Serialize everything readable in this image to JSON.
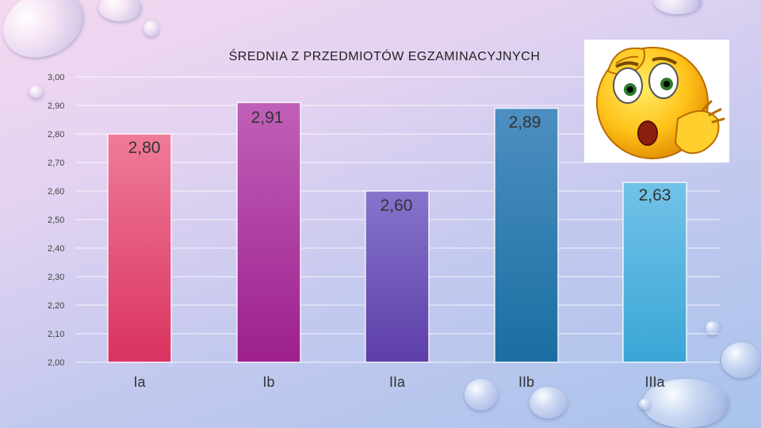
{
  "chart_data": {
    "type": "bar",
    "title": "ŚREDNIA  Z PRZEDMIOTÓW EGZAMINACYJNYCH",
    "categories": [
      "Ia",
      "Ib",
      "IIa",
      "IIb",
      "IIIa"
    ],
    "values": [
      2.8,
      2.91,
      2.6,
      2.89,
      2.63
    ],
    "value_labels": [
      "2,80",
      "2,91",
      "2,60",
      "2,89",
      "2,63"
    ],
    "ylim": [
      2.0,
      3.0
    ],
    "yticks": [
      "2,00",
      "2,10",
      "2,20",
      "2,30",
      "2,40",
      "2,50",
      "2,60",
      "2,70",
      "2,80",
      "2,90",
      "3,00"
    ],
    "grid": true,
    "bar_colors": [
      [
        "#ef7c98",
        "#d93261"
      ],
      [
        "#c060b8",
        "#9d1f8e"
      ],
      [
        "#8674cc",
        "#5c3ea8"
      ],
      [
        "#4d8fc0",
        "#1a6ea3"
      ],
      [
        "#72c2e8",
        "#3aa6d6"
      ]
    ]
  },
  "decoration": {
    "emoji": "confused-face-emoji"
  }
}
